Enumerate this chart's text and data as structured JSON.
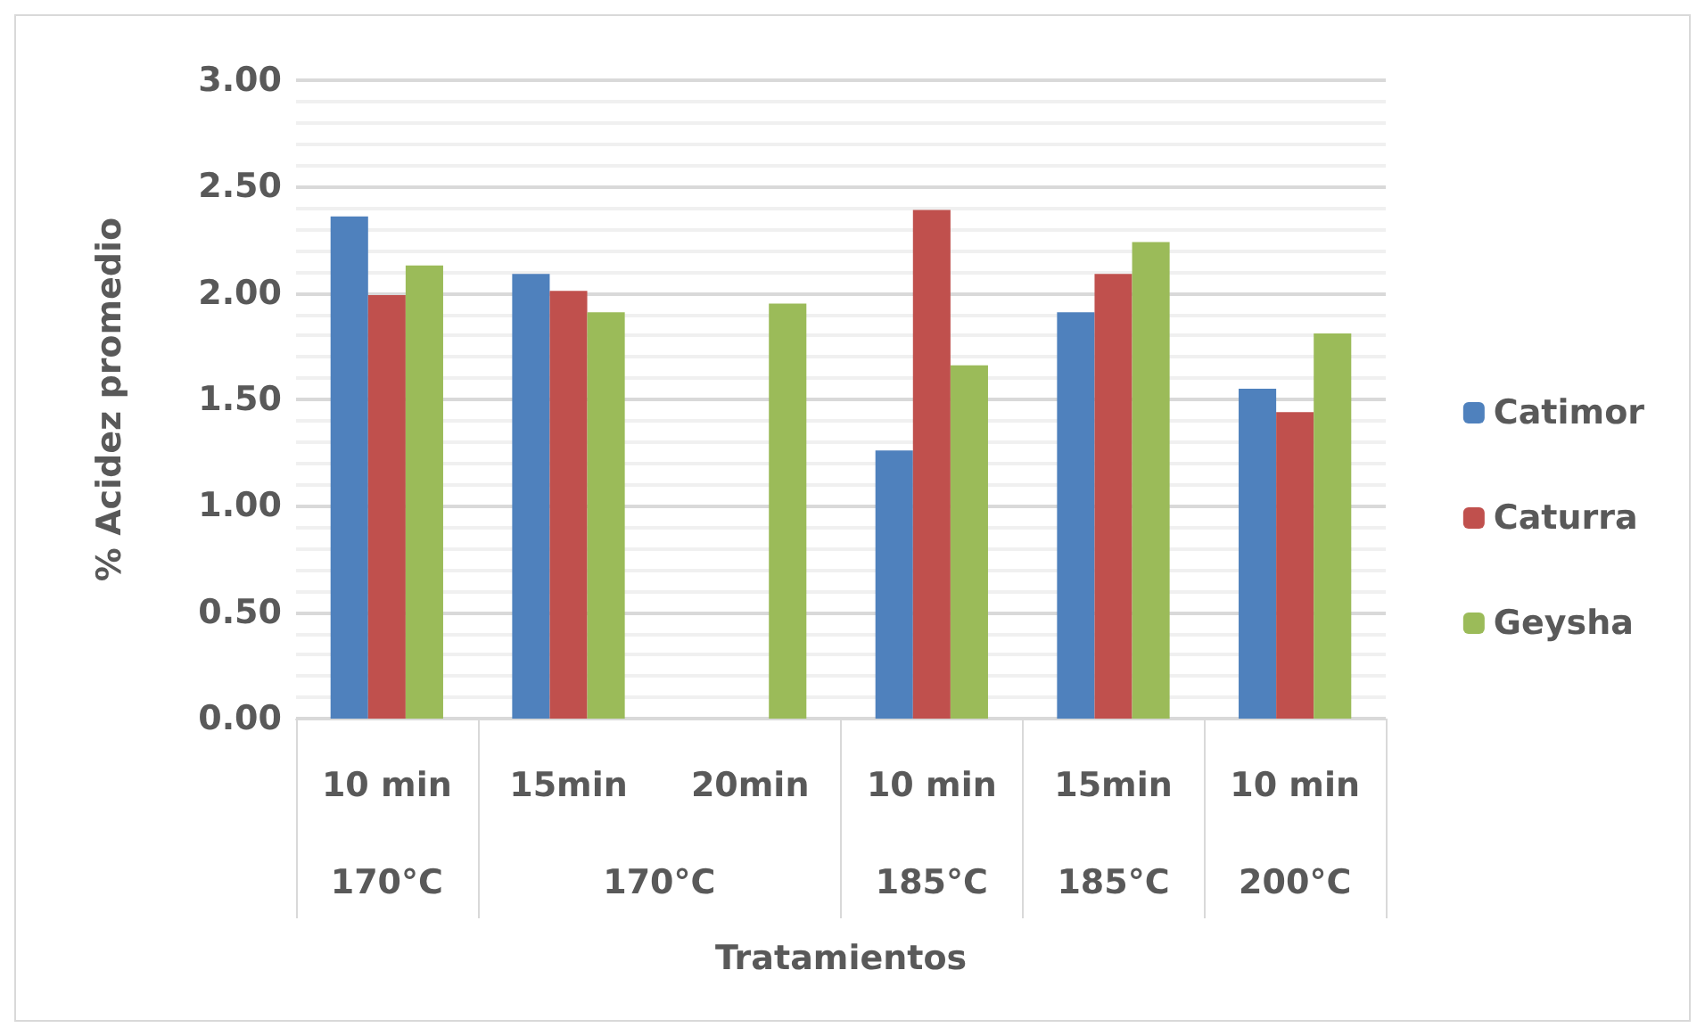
{
  "chart_data": {
    "type": "bar",
    "xlabel": "Tratamientos",
    "ylabel": "% Acidez promedio",
    "categories": [
      "10 min",
      "15min",
      "20min",
      "10 min",
      "15min",
      "10 min"
    ],
    "series": [
      {
        "name": "Catimor",
        "color": "#4f81bd",
        "values": [
          2.36,
          2.09,
          null,
          1.26,
          1.91,
          1.55
        ]
      },
      {
        "name": "Caturra",
        "color": "#c0504d",
        "values": [
          1.99,
          2.01,
          null,
          2.39,
          2.09,
          1.44
        ]
      },
      {
        "name": "Geysha",
        "color": "#9bbb59",
        "values": [
          2.13,
          1.91,
          1.95,
          1.66,
          2.24,
          1.81
        ]
      }
    ],
    "annotations": [
      "170°C",
      "170°C",
      "185°C",
      "185°C",
      "200°C"
    ],
    "ylim": [
      0,
      3
    ],
    "yticks": [
      {
        "value": 0,
        "label": "0.00"
      },
      {
        "value": 0.5,
        "label": "0.50"
      },
      {
        "value": 1,
        "label": "1.00"
      },
      {
        "value": 1.5,
        "label": "1.50"
      },
      {
        "value": 2,
        "label": "2.00"
      },
      {
        "value": 2.5,
        "label": "2.50"
      },
      {
        "value": 3,
        "label": "3.00"
      }
    ],
    "grid": "y",
    "legend": "right"
  }
}
